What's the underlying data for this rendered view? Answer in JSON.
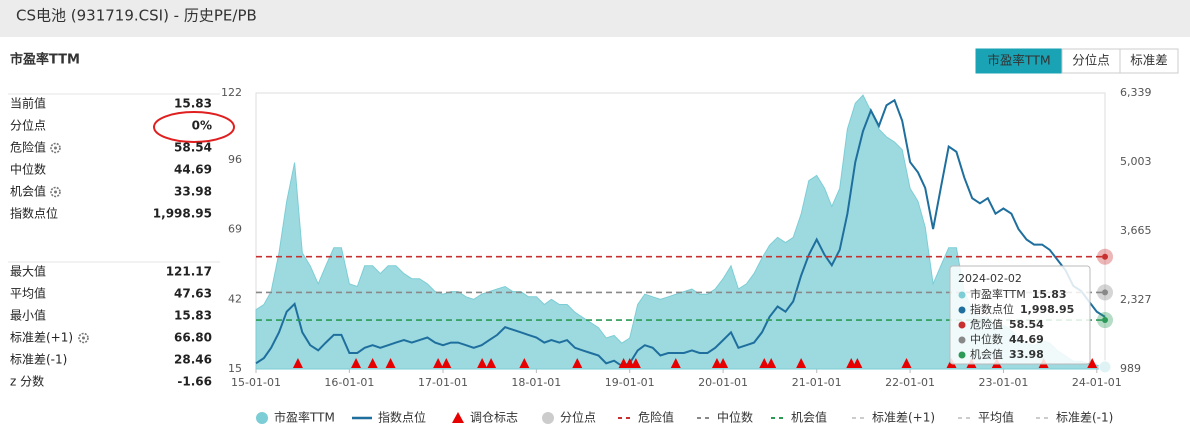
{
  "header": {
    "title": "CS电池 (931719.CSI) - 历史PE/PB"
  },
  "panel": {
    "title": "市盈率TTM",
    "groups": [
      [
        {
          "label": "当前值",
          "value": "15.83"
        },
        {
          "label": "分位点",
          "value": "0%"
        },
        {
          "label": "危险值",
          "value": "58.54",
          "gear": true
        },
        {
          "label": "中位数",
          "value": "44.69"
        },
        {
          "label": "机会值",
          "value": "33.98",
          "gear": true
        },
        {
          "label": "指数点位",
          "value": "1,998.95"
        }
      ],
      [
        {
          "label": "最大值",
          "value": "121.17"
        },
        {
          "label": "平均值",
          "value": "47.63"
        },
        {
          "label": "最小值",
          "value": "15.83"
        },
        {
          "label": "标准差(+1)",
          "value": "66.80",
          "gear": true
        },
        {
          "label": "标准差(-1)",
          "value": "28.46"
        },
        {
          "label": "z 分数",
          "value": "-1.66"
        }
      ]
    ]
  },
  "tabs": {
    "items": [
      "市盈率TTM",
      "分位点",
      "标准差"
    ],
    "active": 0
  },
  "chart_data": {
    "type": "line",
    "x": [
      "15-01-01",
      "15-02-01",
      "15-03-01",
      "15-04-01",
      "15-05-01",
      "15-06-01",
      "15-07-01",
      "15-08-01",
      "15-09-01",
      "15-10-01",
      "15-11-01",
      "15-12-01",
      "16-01-01",
      "16-02-01",
      "16-03-01",
      "16-04-01",
      "16-05-01",
      "16-06-01",
      "16-07-01",
      "16-08-01",
      "16-09-01",
      "16-10-01",
      "16-11-01",
      "16-12-01",
      "17-01-01",
      "17-02-01",
      "17-03-01",
      "17-04-01",
      "17-05-01",
      "17-06-01",
      "17-07-01",
      "17-08-01",
      "17-09-01",
      "17-10-01",
      "17-11-01",
      "17-12-01",
      "18-01-01",
      "18-02-01",
      "18-03-01",
      "18-04-01",
      "18-05-01",
      "18-06-01",
      "18-07-01",
      "18-08-01",
      "18-09-01",
      "18-10-01",
      "18-11-01",
      "18-12-01",
      "19-01-01",
      "19-02-01",
      "19-03-01",
      "19-04-01",
      "19-05-01",
      "19-06-01",
      "19-07-01",
      "19-08-01",
      "19-09-01",
      "19-10-01",
      "19-11-01",
      "19-12-01",
      "20-01-01",
      "20-02-01",
      "20-03-01",
      "20-04-01",
      "20-05-01",
      "20-06-01",
      "20-07-01",
      "20-08-01",
      "20-09-01",
      "20-10-01",
      "20-11-01",
      "20-12-01",
      "21-01-01",
      "21-02-01",
      "21-03-01",
      "21-04-01",
      "21-05-01",
      "21-06-01",
      "21-07-01",
      "21-08-01",
      "21-09-01",
      "21-10-01",
      "21-11-01",
      "21-12-01",
      "22-01-01",
      "22-02-01",
      "22-03-01",
      "22-04-01",
      "22-05-01",
      "22-06-01",
      "22-07-01",
      "22-08-01",
      "22-09-01",
      "22-10-01",
      "22-11-01",
      "22-12-01",
      "23-01-01",
      "23-02-01",
      "23-03-01",
      "23-04-01",
      "23-05-01",
      "23-06-01",
      "23-07-01",
      "23-08-01",
      "23-09-01",
      "23-10-01",
      "23-11-01",
      "23-12-01",
      "24-01-01",
      "24-02-02"
    ],
    "series": [
      {
        "name": "市盈率TTM",
        "color": "#7ccdd5",
        "kind": "area",
        "values": [
          38,
          40,
          45,
          60,
          80,
          95,
          60,
          55,
          48,
          55,
          62,
          62,
          48,
          47,
          55,
          55,
          52,
          55,
          55,
          52,
          50,
          50,
          48,
          45,
          44,
          45,
          45,
          43,
          42,
          44,
          45,
          46,
          47,
          45,
          45,
          43,
          43,
          40,
          42,
          40,
          40,
          37,
          35,
          33,
          31,
          27,
          28,
          25,
          27,
          40,
          44,
          43,
          42,
          43,
          44,
          45,
          46,
          44,
          44,
          46,
          50,
          55,
          46,
          48,
          52,
          58,
          63,
          66,
          64,
          66,
          75,
          88,
          90,
          85,
          78,
          85,
          108,
          118,
          121.17,
          115,
          108,
          105,
          103,
          100,
          85,
          80,
          70,
          48,
          55,
          62,
          62,
          45,
          38,
          35,
          35,
          30,
          32,
          30,
          27,
          25,
          24,
          26,
          25,
          22,
          20,
          18,
          18,
          17,
          16.5,
          15.83
        ]
      },
      {
        "name": "指数点位",
        "color": "#1f6f9e",
        "kind": "line",
        "axis": "y2",
        "values": [
          1100,
          1200,
          1400,
          1700,
          2100,
          2250,
          1700,
          1450,
          1350,
          1500,
          1650,
          1650,
          1300,
          1300,
          1400,
          1450,
          1400,
          1450,
          1500,
          1550,
          1500,
          1550,
          1600,
          1500,
          1450,
          1500,
          1500,
          1450,
          1400,
          1450,
          1550,
          1650,
          1800,
          1750,
          1700,
          1650,
          1600,
          1500,
          1550,
          1500,
          1550,
          1400,
          1350,
          1300,
          1250,
          1100,
          1150,
          1050,
          1100,
          1350,
          1450,
          1400,
          1250,
          1300,
          1300,
          1300,
          1350,
          1300,
          1300,
          1400,
          1550,
          1700,
          1400,
          1450,
          1500,
          1700,
          2000,
          2200,
          2100,
          2300,
          2800,
          3200,
          3500,
          3200,
          3000,
          3300,
          4000,
          5000,
          5600,
          6000,
          5700,
          6100,
          6200,
          5800,
          5000,
          4800,
          4500,
          3700,
          4500,
          5300,
          5200,
          4700,
          4300,
          4200,
          4300,
          4000,
          4100,
          4000,
          3700,
          3500,
          3400,
          3400,
          3300,
          3100,
          2900,
          2600,
          2500,
          2300,
          2100,
          1998.95
        ]
      }
    ],
    "markers": {
      "name": "调仓标志",
      "color": "#e60000",
      "x": [
        "15-06-14",
        "16-01-27",
        "16-04-01",
        "16-06-10",
        "16-12-13",
        "17-01-14",
        "17-06-03",
        "17-07-08",
        "17-11-15",
        "18-06-10",
        "18-12-08",
        "19-01-01",
        "19-01-25",
        "19-06-30",
        "19-12-08",
        "20-01-01",
        "20-06-10",
        "20-07-07",
        "20-11-01",
        "21-05-16",
        "21-06-09",
        "21-12-18",
        "22-06-12",
        "22-08-29",
        "22-12-06",
        "23-06-07",
        "23-12-14"
      ]
    },
    "lines": [
      {
        "name": "危险值",
        "value": 58.54,
        "color": "#c8302f"
      },
      {
        "name": "中位数",
        "value": 44.69,
        "color": "#888888"
      },
      {
        "name": "机会值",
        "value": 33.98,
        "color": "#2b9a56"
      }
    ],
    "legend_other": [
      {
        "name": "分位点",
        "color": "#cccccc"
      },
      {
        "name": "标准差(+1)",
        "color": "#cccccc"
      },
      {
        "name": "平均值",
        "color": "#cccccc"
      },
      {
        "name": "标准差(-1)",
        "color": "#cccccc"
      }
    ],
    "xlim": [
      "15-01-01",
      "24-02-02"
    ],
    "xticks": [
      "15-01-01",
      "16-01-01",
      "17-01-01",
      "18-01-01",
      "19-01-01",
      "20-01-01",
      "21-01-01",
      "22-01-01",
      "23-01-01",
      "24-01-01"
    ],
    "ylim": [
      15,
      122
    ],
    "yticks": [
      15,
      42,
      69,
      96,
      122
    ],
    "y2lim": [
      989,
      6339
    ],
    "y2ticks": [
      989,
      {
        "value": 2327,
        "label": "2,327"
      },
      {
        "value": 3665,
        "label": "3,665"
      },
      {
        "value": 5003,
        "label": "5,003"
      },
      {
        "value": 6339,
        "label": "6,339"
      }
    ],
    "tooltip": {
      "date": "2024-02-02",
      "items": [
        {
          "name": "市盈率TTM",
          "value": "15.83",
          "color": "#7ccdd5"
        },
        {
          "name": "指数点位",
          "value": "1,998.95",
          "color": "#1f6f9e"
        },
        {
          "name": "危险值",
          "value": "58.54",
          "color": "#c8302f"
        },
        {
          "name": "中位数",
          "value": "44.69",
          "color": "#888888"
        },
        {
          "name": "机会值",
          "value": "33.98",
          "color": "#2b9a56"
        }
      ]
    }
  }
}
